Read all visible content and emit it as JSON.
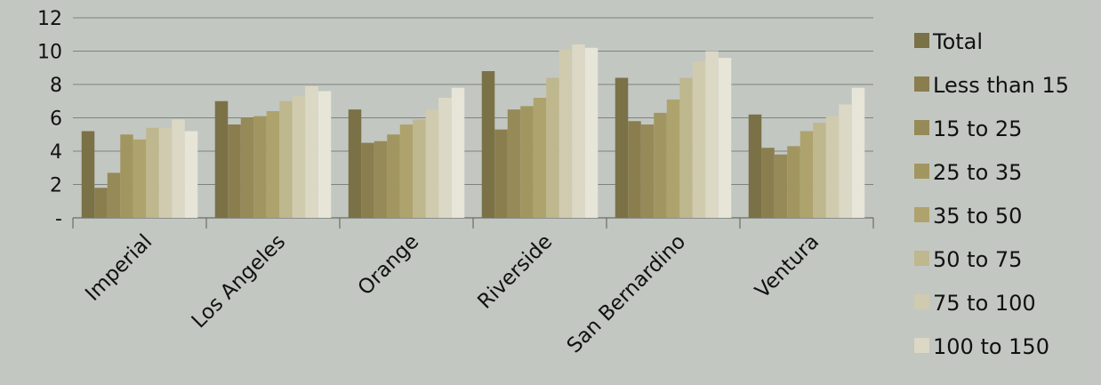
{
  "chart_data": {
    "type": "bar",
    "categories": [
      "Imperial",
      "Los Angeles",
      "Orange",
      "Riverside",
      "San Bernardino",
      "Ventura"
    ],
    "y_ticks": [
      "-",
      "2",
      "4",
      "6",
      "8",
      "10",
      "12"
    ],
    "ylim": [
      0,
      12
    ],
    "grid": true,
    "legend_position": "right",
    "series": [
      {
        "name": "Total",
        "color": "#7a7146",
        "values": [
          5.2,
          7.0,
          6.5,
          8.8,
          8.4,
          6.2
        ]
      },
      {
        "name": "Less than 15",
        "color": "#8a7e4f",
        "values": [
          1.8,
          5.6,
          4.5,
          5.3,
          5.8,
          4.2
        ]
      },
      {
        "name": "15 to 25",
        "color": "#968a58",
        "values": [
          2.7,
          6.0,
          4.6,
          6.5,
          5.6,
          3.8
        ]
      },
      {
        "name": "25 to 35",
        "color": "#a29660",
        "values": [
          5.0,
          6.1,
          5.0,
          6.7,
          6.3,
          4.3
        ]
      },
      {
        "name": "35 to 50",
        "color": "#aea36c",
        "values": [
          4.7,
          6.4,
          5.6,
          7.2,
          7.1,
          5.2
        ]
      },
      {
        "name": "50 to 75",
        "color": "#bfb78d",
        "values": [
          5.4,
          7.0,
          5.9,
          8.4,
          8.4,
          5.7
        ]
      },
      {
        "name": "75 to 100",
        "color": "#d0cbae",
        "values": [
          5.4,
          7.3,
          6.5,
          10.1,
          9.4,
          6.1
        ]
      },
      {
        "name": "100 to 150",
        "color": "#dcd8c6",
        "values": [
          5.9,
          7.9,
          7.2,
          10.4,
          10.0,
          6.8
        ]
      },
      {
        "name": "",
        "color": "#e7e4d8",
        "values": [
          5.2,
          7.6,
          7.8,
          10.2,
          9.6,
          7.8
        ]
      }
    ]
  }
}
